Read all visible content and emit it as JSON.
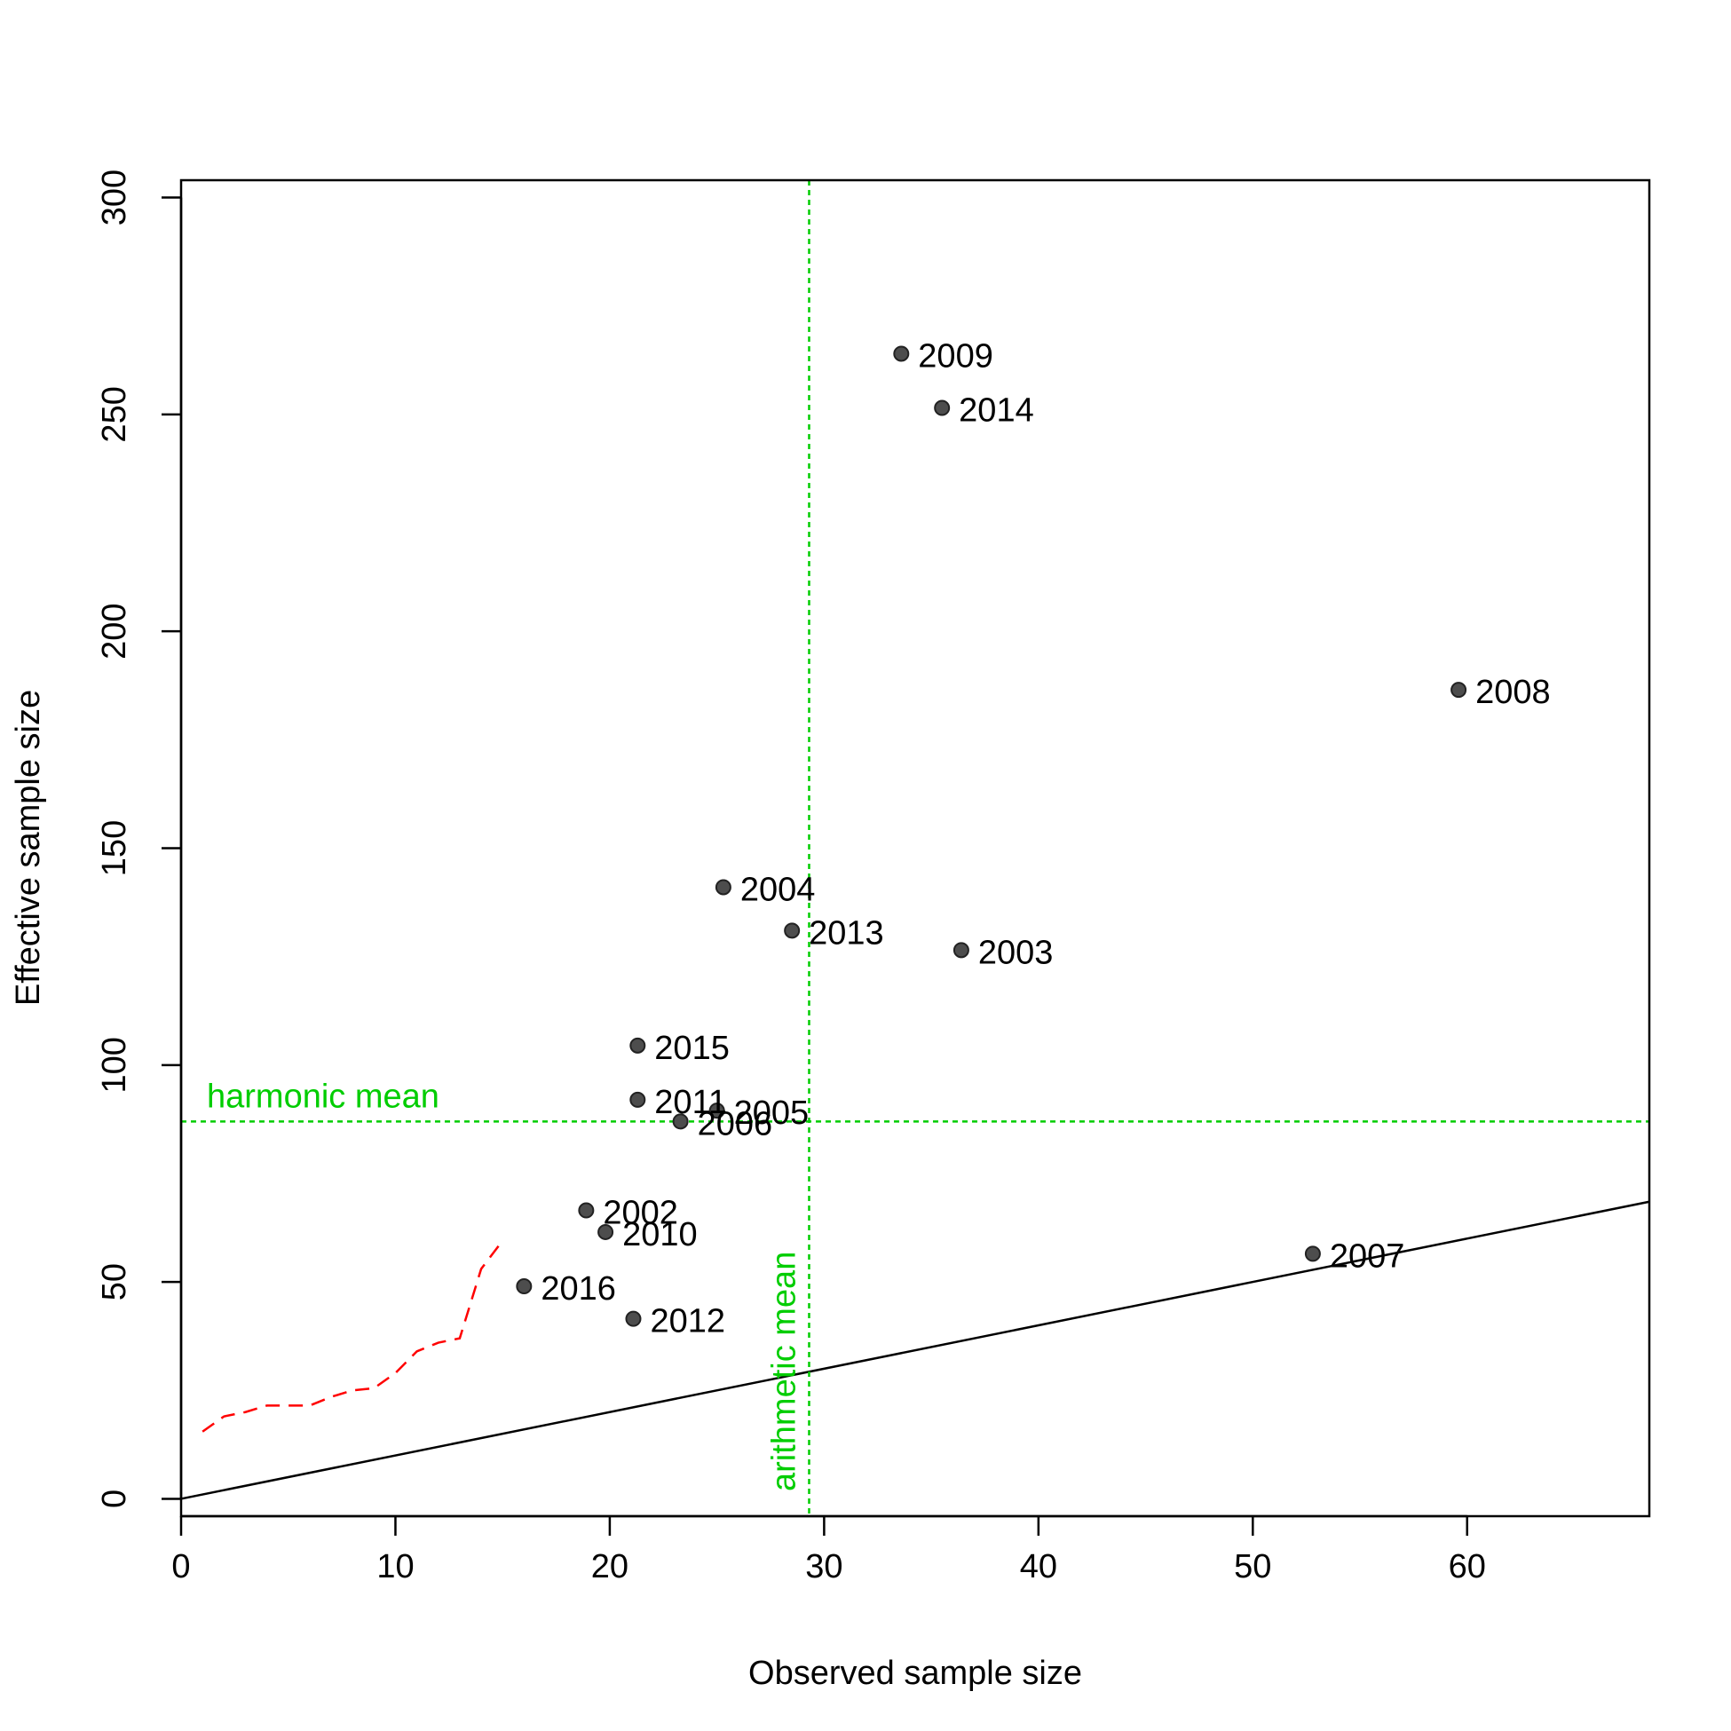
{
  "chart_data": {
    "type": "scatter",
    "xlabel": "Observed sample size",
    "ylabel": "Effective sample size",
    "xlim": [
      0,
      68.5
    ],
    "ylim": [
      -4,
      304
    ],
    "x_ticks": [
      0,
      10,
      20,
      30,
      40,
      50,
      60
    ],
    "y_ticks": [
      0,
      50,
      100,
      150,
      200,
      250,
      300
    ],
    "grid": false,
    "points": [
      {
        "label": "2002",
        "x": 18.9,
        "y": 66.5
      },
      {
        "label": "2003",
        "x": 36.4,
        "y": 126.5
      },
      {
        "label": "2004",
        "x": 25.3,
        "y": 141.0
      },
      {
        "label": "2005",
        "x": 25.0,
        "y": 89.5
      },
      {
        "label": "2006",
        "x": 23.3,
        "y": 87.0
      },
      {
        "label": "2007",
        "x": 52.8,
        "y": 56.5
      },
      {
        "label": "2008",
        "x": 59.6,
        "y": 186.5
      },
      {
        "label": "2009",
        "x": 33.6,
        "y": 264.0
      },
      {
        "label": "2010",
        "x": 19.8,
        "y": 61.5
      },
      {
        "label": "2011",
        "x": 21.3,
        "y": 92.0
      },
      {
        "label": "2012",
        "x": 21.1,
        "y": 41.5
      },
      {
        "label": "2013",
        "x": 28.5,
        "y": 131.0
      },
      {
        "label": "2014",
        "x": 35.5,
        "y": 251.5
      },
      {
        "label": "2015",
        "x": 21.3,
        "y": 104.5
      },
      {
        "label": "2016",
        "x": 16.0,
        "y": 49.0
      }
    ],
    "point_color": "#4d4d4d",
    "reference_lines": {
      "one_to_one": {
        "x": [
          0,
          68.5
        ],
        "y": [
          0,
          68.5
        ],
        "color": "#000000"
      },
      "harmonic_mean": {
        "label": "harmonic mean",
        "y": 87.0,
        "color": "#00cd00"
      },
      "arithmetic_mean": {
        "label": "arithmetic mean",
        "x": 29.3,
        "color": "#00cd00"
      }
    },
    "red_dashed_curve": {
      "color": "#ff0000",
      "x": [
        1,
        2,
        3,
        4,
        5,
        6,
        7,
        8,
        9,
        10,
        11,
        12,
        13,
        14,
        15
      ],
      "y": [
        15.5,
        19.0,
        20.0,
        21.5,
        21.5,
        21.5,
        23.5,
        25.0,
        25.5,
        29.0,
        34.0,
        36.0,
        37.0,
        53.0,
        59.5
      ]
    }
  }
}
